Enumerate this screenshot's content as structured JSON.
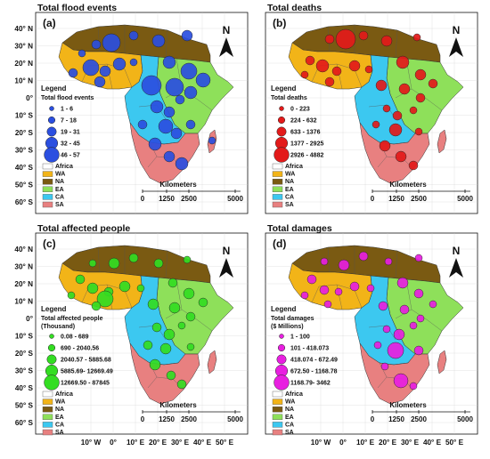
{
  "panels": [
    {
      "id": "a",
      "title": "Total flood events",
      "label": "(a)",
      "legend_title": "Legend",
      "legend_subtitle": "Total flood events",
      "legend_subtitle2": "",
      "classes": [
        "1 - 6",
        "7 - 18",
        "19 - 31",
        "32 - 45",
        "46 - 57"
      ],
      "bubble_color": "#2b4fe0",
      "lat_ticks": [
        "40° N",
        "30° N",
        "20° N",
        "10° N",
        "0°",
        "10° S",
        "20° S",
        "30° S",
        "40° S",
        "50° S",
        "60° S"
      ],
      "lon_ticks": []
    },
    {
      "id": "b",
      "title": "Total deaths",
      "label": "(b)",
      "legend_title": "Legend",
      "legend_subtitle": "Total deaths",
      "legend_subtitle2": "",
      "classes": [
        "0 - 223",
        "224 - 632",
        "633 - 1376",
        "1377 - 2925",
        "2926 - 4882"
      ],
      "bubble_color": "#e31a1a",
      "lat_ticks": [],
      "lon_ticks": []
    },
    {
      "id": "c",
      "title": "Total affected people",
      "label": "(c)",
      "legend_title": "Legend",
      "legend_subtitle": "Total affected people",
      "legend_subtitle2": "(Thousand)",
      "classes": [
        "0.08 - 689",
        "690 - 2040.56",
        "2040.57 - 5885.68",
        "5885.69- 12669.49",
        "12669.50 - 87845"
      ],
      "bubble_color": "#33dd22",
      "lat_ticks": [
        "40° N",
        "30° N",
        "20° N",
        "10° N",
        "0°",
        "10° S",
        "20° S",
        "30° S",
        "40° S",
        "50° S",
        "60° S"
      ],
      "lon_ticks": [
        "10° W",
        "0°",
        "10° E",
        "20° E",
        "30° E",
        "40° E",
        "50° E"
      ]
    },
    {
      "id": "d",
      "title": "Total damages",
      "label": "(d)",
      "legend_title": "Legend",
      "legend_subtitle": "Total damages",
      "legend_subtitle2": "($ Millions)",
      "classes": [
        "1 - 100",
        "101 - 418.073",
        "418.074 - 672.49",
        "672.50 - 1168.78",
        "1168.79- 3462"
      ],
      "bubble_color": "#e81fe0",
      "lat_ticks": [],
      "lon_ticks": [
        "10° W",
        "0°",
        "10° E",
        "20° E",
        "30° E",
        "40° E",
        "50° E"
      ]
    }
  ],
  "regions": [
    {
      "code": "Africa",
      "color": "#ffffff"
    },
    {
      "code": "WA",
      "color": "#f2b418"
    },
    {
      "code": "NA",
      "color": "#7a5a12"
    },
    {
      "code": "EA",
      "color": "#8ee05a"
    },
    {
      "code": "CA",
      "color": "#3cc8f0"
    },
    {
      "code": "SA",
      "color": "#e88080"
    }
  ],
  "north_arrow": "N",
  "scale_title": "Kilometers",
  "scale_ticks": [
    "0",
    "1250",
    "2500",
    "5000"
  ]
}
